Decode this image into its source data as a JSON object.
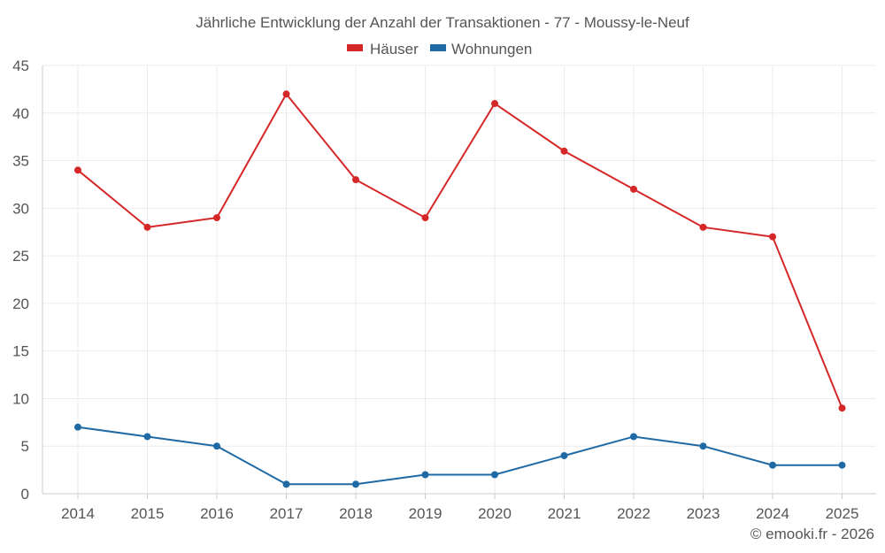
{
  "chart_data": {
    "type": "line",
    "title": "Jährliche Entwicklung der Anzahl der Transaktionen - 77 - Moussy-le-Neuf",
    "categories": [
      "2014",
      "2015",
      "2016",
      "2017",
      "2018",
      "2019",
      "2020",
      "2021",
      "2022",
      "2023",
      "2024",
      "2025"
    ],
    "series": [
      {
        "name": "Häuser",
        "color": "#d62728",
        "values": [
          34,
          28,
          29,
          42,
          33,
          29,
          41,
          36,
          32,
          28,
          27,
          9
        ]
      },
      {
        "name": "Wohnungen",
        "color": "#1f6aa5",
        "values": [
          7,
          6,
          5,
          1,
          1,
          2,
          2,
          4,
          6,
          5,
          3,
          3
        ]
      }
    ],
    "ylim": [
      0,
      45
    ],
    "yticks": [
      0,
      5,
      10,
      15,
      20,
      25,
      30,
      35,
      40,
      45
    ],
    "xlabel": "",
    "ylabel": "",
    "grid": true,
    "legend": "top-center"
  },
  "credit": "© emooki.fr - 2026"
}
